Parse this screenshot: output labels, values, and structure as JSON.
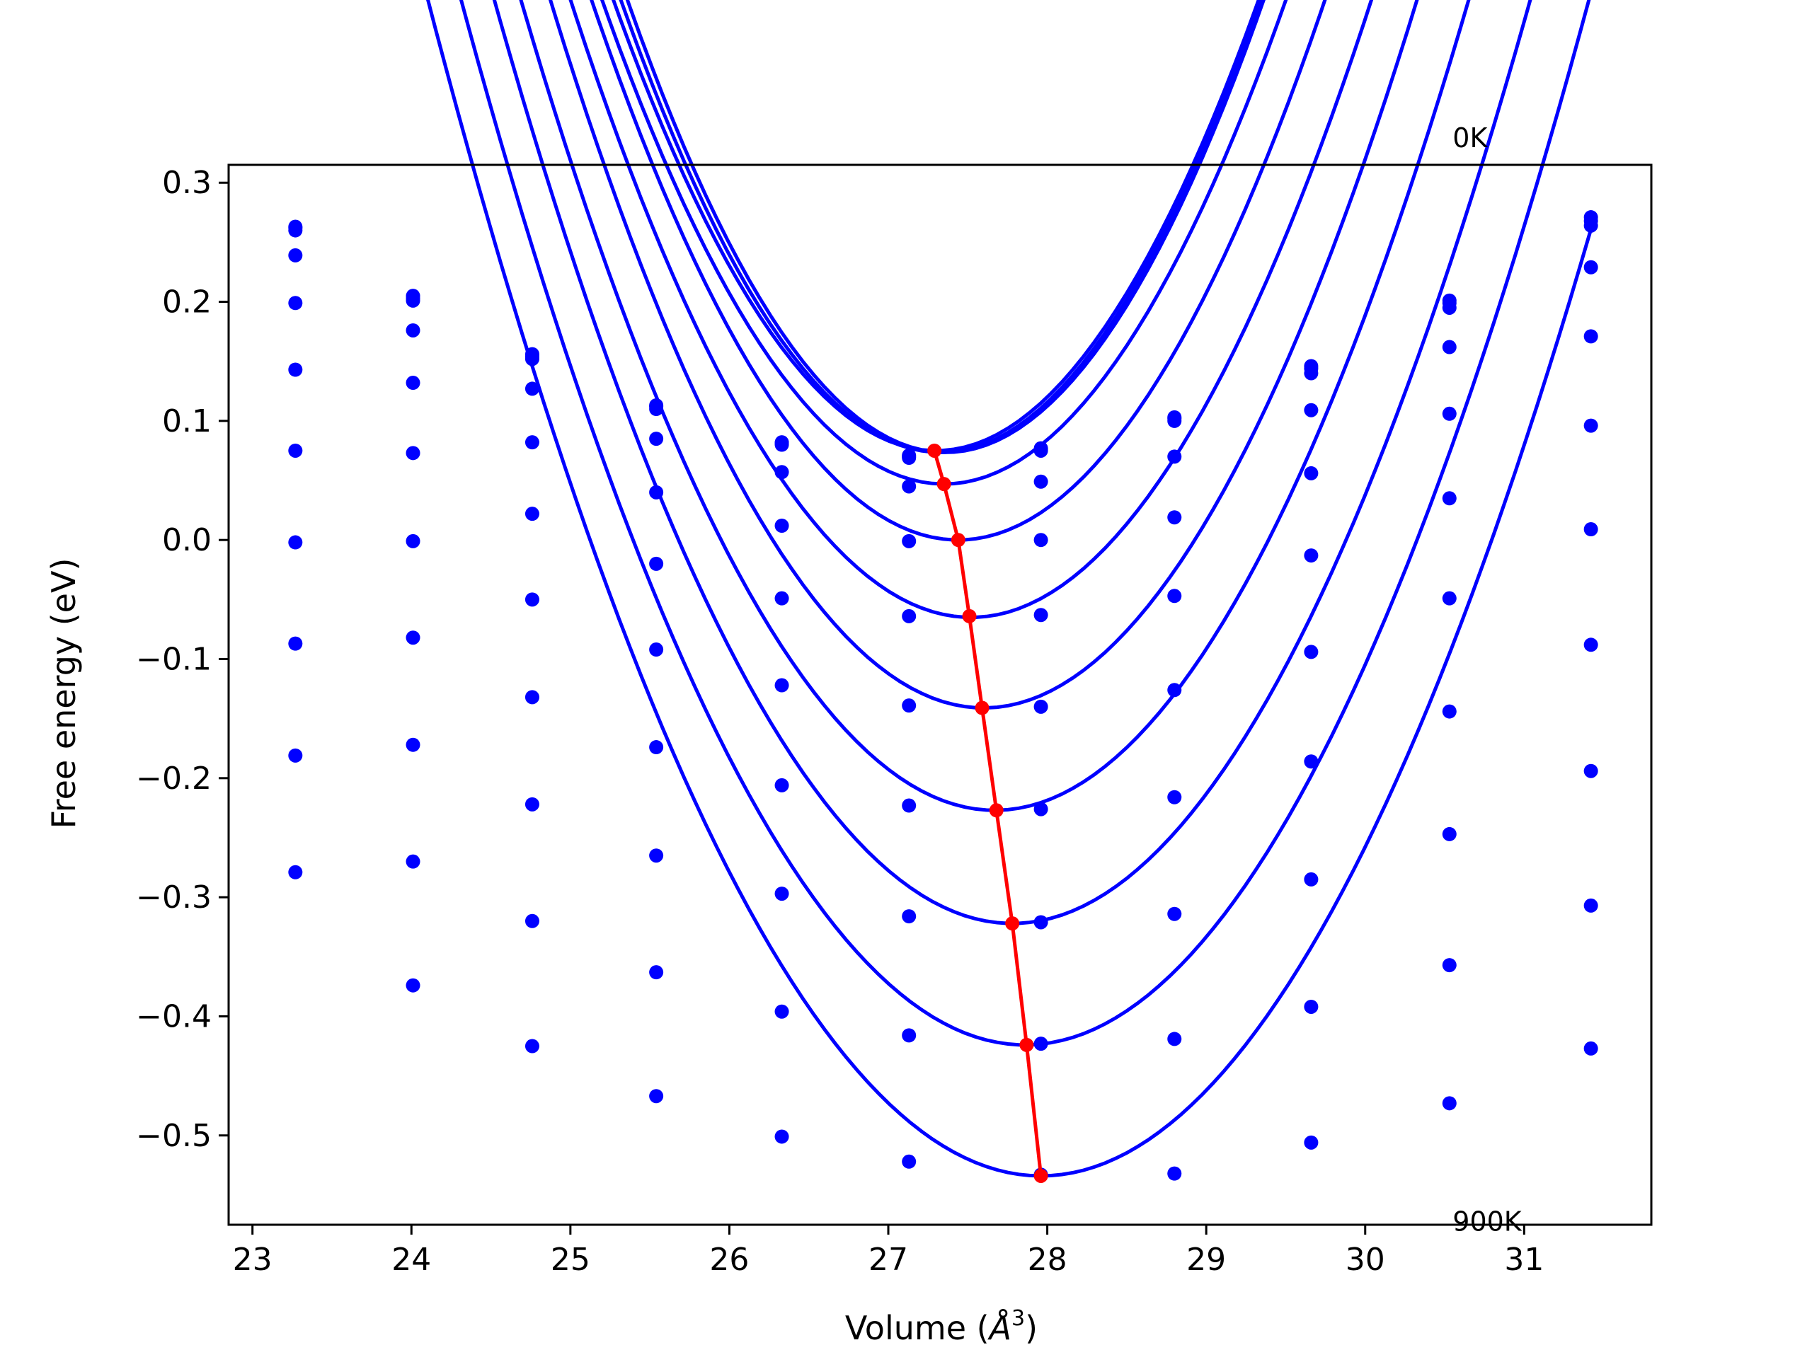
{
  "chart_data": {
    "type": "line",
    "title": "",
    "xlabel": "Volume (",
    "xlabel_symbol": "Å",
    "xlabel_exponent": "3",
    "xlabel_close": ")",
    "ylabel": "Free energy (eV)",
    "xlim": [
      22.85,
      31.8
    ],
    "ylim": [
      -0.575,
      0.315
    ],
    "xticks": [
      23,
      24,
      25,
      26,
      27,
      28,
      29,
      30,
      31
    ],
    "xtick_labels": [
      "23",
      "24",
      "25",
      "26",
      "27",
      "28",
      "29",
      "30",
      "31"
    ],
    "yticks": [
      -0.5,
      -0.4,
      -0.3,
      -0.2,
      -0.1,
      0.0,
      0.1,
      0.2,
      0.3
    ],
    "ytick_labels": [
      "−0.5",
      "−0.4",
      "−0.3",
      "−0.2",
      "−0.1",
      "0.0",
      "0.1",
      "0.2",
      "0.3"
    ],
    "grid": false,
    "legend": "none",
    "annotations": [
      {
        "text": "0K",
        "x": 30.55,
        "y": 0.33
      },
      {
        "text": "900K",
        "x": 30.55,
        "y": -0.58
      }
    ],
    "volumes": [
      23.27,
      24.01,
      24.76,
      25.54,
      26.33,
      27.13,
      27.96,
      28.8,
      29.66,
      30.53,
      31.42
    ],
    "series": [
      {
        "points": [
          0.263,
          0.205,
          0.156,
          0.113,
          0.082,
          0.071,
          0.077,
          0.103,
          0.146,
          0.201,
          0.271
        ],
        "fit_a": 0.09485,
        "fit_v0": 27.36,
        "fit_c": 0.0735
      },
      {
        "points": [
          0.262,
          0.203,
          0.154,
          0.112,
          0.081,
          0.07,
          0.076,
          0.102,
          0.144,
          0.199,
          0.268
        ],
        "fit_a": 0.09378,
        "fit_v0": 27.33,
        "fit_c": 0.0735
      },
      {
        "points": [
          0.26,
          0.201,
          0.152,
          0.11,
          0.08,
          0.069,
          0.075,
          0.1,
          0.14,
          0.195,
          0.264
        ],
        "fit_a": 0.09186,
        "fit_v0": 27.3,
        "fit_c": 0.075
      },
      {
        "points": [
          0.239,
          0.176,
          0.127,
          0.085,
          0.057,
          0.045,
          0.049,
          0.07,
          0.109,
          0.162,
          0.229
        ],
        "fit_a": 0.08784,
        "fit_v0": 27.35,
        "fit_c": 0.047
      },
      {
        "points": [
          0.199,
          0.132,
          0.082,
          0.04,
          0.012,
          -0.001,
          0.0,
          0.019,
          0.056,
          0.106,
          0.171
        ],
        "fit_a": 0.08519,
        "fit_v0": 27.44,
        "fit_c": 0.0
      },
      {
        "points": [
          0.143,
          0.073,
          0.022,
          -0.02,
          -0.049,
          -0.064,
          -0.063,
          -0.047,
          -0.013,
          0.035,
          0.096
        ],
        "fit_a": 0.0817,
        "fit_v0": 27.52,
        "fit_c": -0.065
      },
      {
        "points": [
          0.075,
          -0.001,
          -0.05,
          -0.092,
          -0.122,
          -0.139,
          -0.14,
          -0.126,
          -0.094,
          -0.049,
          0.009
        ],
        "fit_a": 0.08,
        "fit_v0": 27.6,
        "fit_c": -0.141
      },
      {
        "points": [
          -0.002,
          -0.082,
          -0.132,
          -0.174,
          -0.206,
          -0.223,
          -0.226,
          -0.216,
          -0.186,
          -0.144,
          -0.088
        ],
        "fit_a": 0.07657,
        "fit_v0": 27.67,
        "fit_c": -0.227
      },
      {
        "points": [
          -0.087,
          -0.172,
          -0.222,
          -0.265,
          -0.297,
          -0.316,
          -0.321,
          -0.314,
          -0.285,
          -0.247,
          -0.194
        ],
        "fit_a": 0.07303,
        "fit_v0": 27.78,
        "fit_c": -0.322
      },
      {
        "points": [
          -0.181,
          -0.27,
          -0.32,
          -0.363,
          -0.396,
          -0.416,
          -0.423,
          -0.419,
          -0.392,
          -0.357,
          -0.307
        ],
        "fit_a": 0.06973,
        "fit_v0": 27.86,
        "fit_c": -0.424
      },
      {
        "points": [
          -0.279,
          -0.374,
          -0.425,
          -0.467,
          -0.501,
          -0.522,
          -0.533,
          -0.532,
          -0.506,
          -0.473,
          -0.427
        ],
        "fit_a": 0.0664,
        "fit_v0": 27.96,
        "fit_c": -0.534
      }
    ],
    "minima_path": {
      "x": [
        27.29,
        27.35,
        27.44,
        27.51,
        27.59,
        27.68,
        27.78,
        27.87,
        27.96
      ],
      "y": [
        0.075,
        0.047,
        0.0,
        -0.064,
        -0.141,
        -0.227,
        -0.322,
        -0.424,
        -0.534
      ]
    },
    "colors": {
      "series": "#0000ff",
      "minima": "#ff0000",
      "axes": "#000000"
    }
  }
}
